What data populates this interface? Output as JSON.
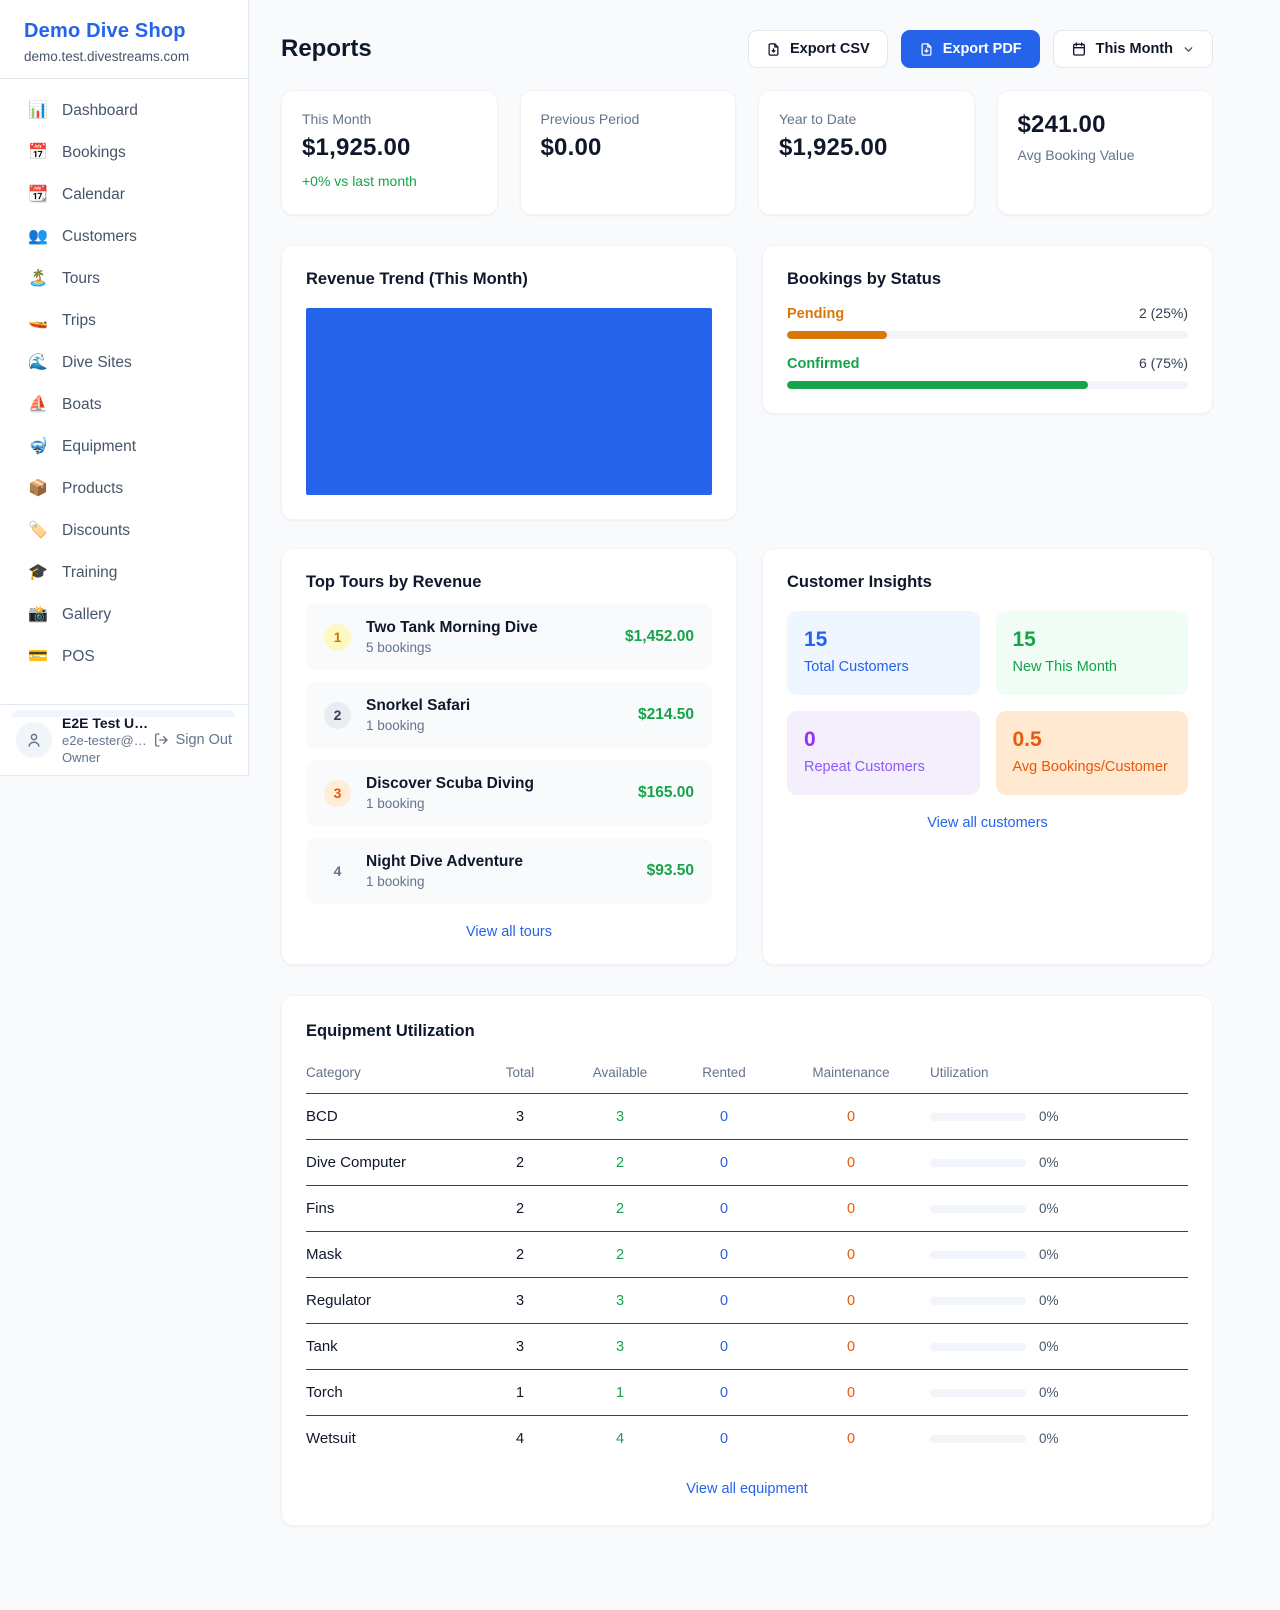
{
  "sidebar": {
    "brand": {
      "name": "Demo Dive Shop",
      "domain": "demo.test.divestreams.com"
    },
    "items": [
      {
        "label": "Dashboard",
        "icon": "bar-chart-icon",
        "glyph": "📊"
      },
      {
        "label": "Bookings",
        "icon": "calendar-date-icon",
        "glyph": "📅"
      },
      {
        "label": "Calendar",
        "icon": "tear-off-calendar-icon",
        "glyph": "📆"
      },
      {
        "label": "Customers",
        "icon": "people-icon",
        "glyph": "👥"
      },
      {
        "label": "Tours",
        "icon": "island-icon",
        "glyph": "🏝️"
      },
      {
        "label": "Trips",
        "icon": "speedboat-icon",
        "glyph": "🚤"
      },
      {
        "label": "Dive Sites",
        "icon": "wave-icon",
        "glyph": "🌊"
      },
      {
        "label": "Boats",
        "icon": "sailboat-icon",
        "glyph": "⛵"
      },
      {
        "label": "Equipment",
        "icon": "diving-mask-icon",
        "glyph": "🤿"
      },
      {
        "label": "Products",
        "icon": "package-icon",
        "glyph": "📦"
      },
      {
        "label": "Discounts",
        "icon": "tag-icon",
        "glyph": "🏷️"
      },
      {
        "label": "Training",
        "icon": "graduation-cap-icon",
        "glyph": "🎓"
      },
      {
        "label": "Gallery",
        "icon": "camera-icon",
        "glyph": "📸"
      },
      {
        "label": "POS",
        "icon": "credit-card-icon",
        "glyph": "💳"
      }
    ],
    "user": {
      "name": "E2E Test U…",
      "email": "e2e-tester@…",
      "role": "Owner",
      "signout_label": "Sign Out"
    }
  },
  "header": {
    "title": "Reports",
    "export_csv_label": "Export CSV",
    "export_pdf_label": "Export PDF",
    "period_label": "This Month"
  },
  "stats": {
    "this_month": {
      "label": "This Month",
      "value": "$1,925.00",
      "delta": "+0% vs last month"
    },
    "previous_period": {
      "label": "Previous Period",
      "value": "$0.00"
    },
    "year_to_date": {
      "label": "Year to Date",
      "value": "$1,925.00"
    },
    "avg_booking": {
      "value": "$241.00",
      "label": "Avg Booking Value"
    }
  },
  "revenue_trend": {
    "title": "Revenue Trend (This Month)",
    "bar_color": "#2563eb"
  },
  "bookings_by_status": {
    "title": "Bookings by Status",
    "rows": [
      {
        "label": "Pending",
        "value": "2 (25%)",
        "percent": 25,
        "color": "#d97706"
      },
      {
        "label": "Confirmed",
        "value": "6 (75%)",
        "percent": 75,
        "color": "#16a34a"
      }
    ]
  },
  "top_tours": {
    "title": "Top Tours by Revenue",
    "rows": [
      {
        "rank": "1",
        "name": "Two Tank Morning Dive",
        "bookings": "5 bookings",
        "revenue": "$1,452.00"
      },
      {
        "rank": "2",
        "name": "Snorkel Safari",
        "bookings": "1 booking",
        "revenue": "$214.50"
      },
      {
        "rank": "3",
        "name": "Discover Scuba Diving",
        "bookings": "1 booking",
        "revenue": "$165.00"
      },
      {
        "rank": "4",
        "name": "Night Dive Adventure",
        "bookings": "1 booking",
        "revenue": "$93.50"
      }
    ],
    "link": "View all tours"
  },
  "customer_insights": {
    "title": "Customer Insights",
    "tiles": [
      {
        "value": "15",
        "label": "Total Customers",
        "color": "#2563eb"
      },
      {
        "value": "15",
        "label": "New This Month",
        "color": "#16a34a"
      },
      {
        "value": "0",
        "label": "Repeat Customers",
        "color": "#9333ea"
      },
      {
        "value": "0.5",
        "label": "Avg Bookings/Customer",
        "color": "#ea580c"
      }
    ],
    "link": "View all customers"
  },
  "equipment": {
    "title": "Equipment Utilization",
    "columns": [
      "Category",
      "Total",
      "Available",
      "Rented",
      "Maintenance",
      "Utilization"
    ],
    "rows": [
      {
        "category": "BCD",
        "total": "3",
        "available": "3",
        "rented": "0",
        "maintenance": "0",
        "utilization": "0%"
      },
      {
        "category": "Dive Computer",
        "total": "2",
        "available": "2",
        "rented": "0",
        "maintenance": "0",
        "utilization": "0%"
      },
      {
        "category": "Fins",
        "total": "2",
        "available": "2",
        "rented": "0",
        "maintenance": "0",
        "utilization": "0%"
      },
      {
        "category": "Mask",
        "total": "2",
        "available": "2",
        "rented": "0",
        "maintenance": "0",
        "utilization": "0%"
      },
      {
        "category": "Regulator",
        "total": "3",
        "available": "3",
        "rented": "0",
        "maintenance": "0",
        "utilization": "0%"
      },
      {
        "category": "Tank",
        "total": "3",
        "available": "3",
        "rented": "0",
        "maintenance": "0",
        "utilization": "0%"
      },
      {
        "category": "Torch",
        "total": "1",
        "available": "1",
        "rented": "0",
        "maintenance": "0",
        "utilization": "0%"
      },
      {
        "category": "Wetsuit",
        "total": "4",
        "available": "4",
        "rented": "0",
        "maintenance": "0",
        "utilization": "0%"
      }
    ],
    "link": "View all equipment"
  },
  "colors": {
    "accent_blue": "#2563eb",
    "green": "#16a34a",
    "orange_pending": "#d97706",
    "orange_maintenance": "#ea580c",
    "purple": "#9333ea",
    "page_bg": "#f8fafc"
  }
}
